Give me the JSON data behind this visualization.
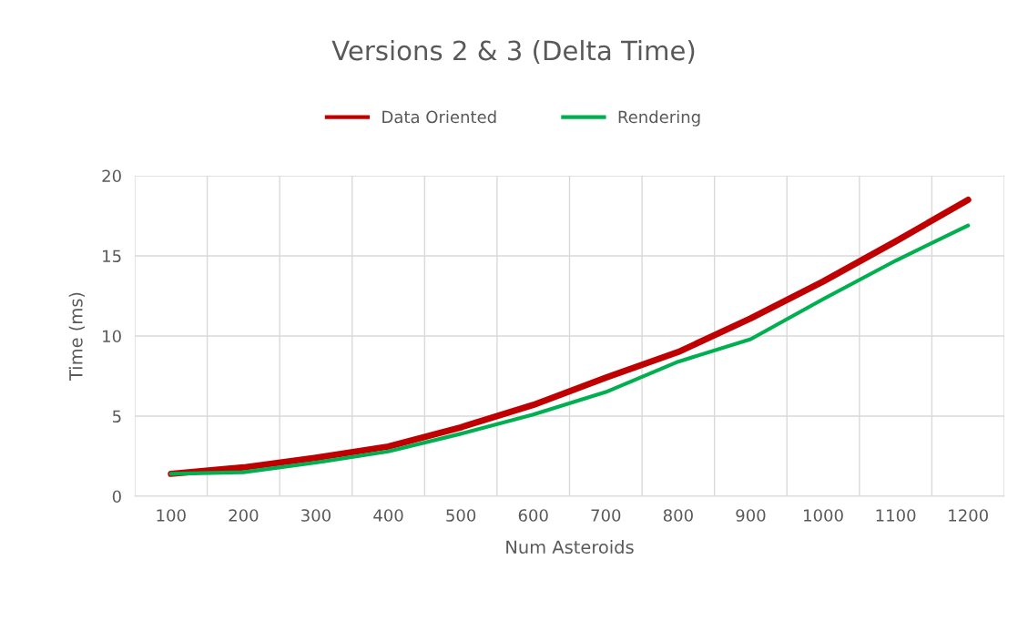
{
  "chart_data": {
    "type": "line",
    "title": "Versions 2 & 3 (Delta Time)",
    "xlabel": "Num Asteroids",
    "ylabel": "Time (ms)",
    "categories": [
      "100",
      "200",
      "300",
      "400",
      "500",
      "600",
      "700",
      "800",
      "900",
      "1000",
      "1100",
      "1200"
    ],
    "series": [
      {
        "name": "Data Oriented",
        "color": "#c00000",
        "values": [
          1.4,
          1.8,
          2.4,
          3.1,
          4.3,
          5.7,
          7.4,
          9.0,
          11.1,
          13.4,
          15.9,
          18.5
        ]
      },
      {
        "name": "Rendering",
        "color": "#00b050",
        "values": [
          1.4,
          1.5,
          2.1,
          2.8,
          3.9,
          5.1,
          6.5,
          8.4,
          9.8,
          12.3,
          14.7,
          16.9
        ]
      }
    ],
    "ylim": [
      0,
      20
    ],
    "yticks": [
      0,
      5,
      10,
      15,
      20
    ],
    "grid": true,
    "legend": "top",
    "marker": "none",
    "line_style": "solid"
  }
}
